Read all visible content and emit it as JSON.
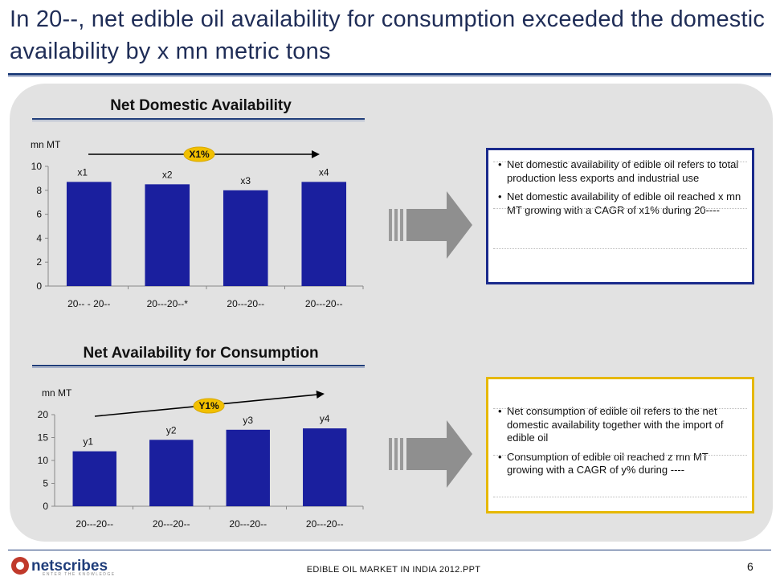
{
  "slide": {
    "title": "In 20--, net edible oil availability for consumption exceeded the domestic availability by x mn metric tons"
  },
  "charts": [
    {
      "id": "domestic",
      "title": "Net Domestic Availability",
      "ylabel": "mn MT",
      "trend_label": "X1%",
      "bar_color": "#1a1f9e",
      "box": {
        "color": "#1a2a8c",
        "bullets": [
          "Net domestic availability of edible oil refers to total production less exports and industrial use",
          "Net domestic availability of edible oil reached x mn MT growing with a CAGR of x1%  during 20----"
        ]
      }
    },
    {
      "id": "consumption",
      "title": "Net Availability for Consumption",
      "ylabel": "mn MT",
      "trend_label": "Y1%",
      "bar_color": "#1a1f9e",
      "box": {
        "color": "#e6b800",
        "bullets": [
          "Net consumption of edible oil refers to the net domestic availability together with the import of edible oil",
          "Consumption of edible oil reached z mn MT growing with a CAGR of y% during ----"
        ]
      }
    }
  ],
  "chart_data": [
    {
      "type": "bar",
      "title": "Net Domestic Availability",
      "ylabel": "mn MT",
      "categories": [
        "20-- - 20--",
        "20---20--*",
        "20---20--",
        "20---20--"
      ],
      "values": [
        8.7,
        8.5,
        8.0,
        8.7
      ],
      "data_labels": [
        "x1",
        "x2",
        "x3",
        "x4"
      ],
      "yticks": [
        0,
        2,
        4,
        6,
        8,
        10
      ],
      "ylim": [
        0,
        10
      ],
      "grid": false,
      "legend": "none"
    },
    {
      "type": "bar",
      "title": "Net Availability for Consumption",
      "ylabel": "mn MT",
      "categories": [
        "20---20--",
        "20---20--",
        "20---20--",
        "20---20--"
      ],
      "values": [
        12.0,
        14.5,
        16.7,
        17.0
      ],
      "data_labels": [
        "y1",
        "y2",
        "y3",
        "y4"
      ],
      "yticks": [
        0,
        5,
        10,
        15,
        20
      ],
      "ylim": [
        0,
        20
      ],
      "grid": false,
      "legend": "none"
    }
  ],
  "footer": {
    "brand": "netscribes",
    "tagline": "ENTER THE KNOWLEDGE",
    "document": "EDIBLE OIL MARKET IN INDIA 2012.PPT",
    "page_number": "6"
  }
}
